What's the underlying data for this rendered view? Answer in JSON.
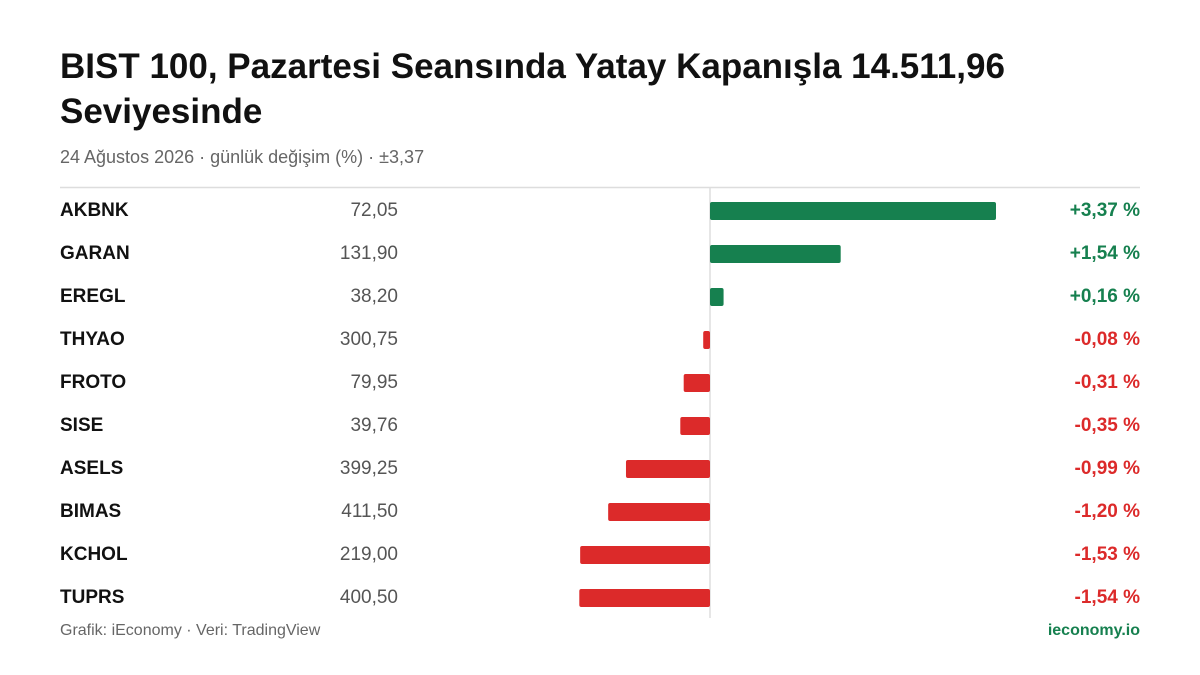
{
  "chart_data": {
    "type": "bar",
    "title": "BIST 100, Pazartesi Seansında Yatay Kapanışla 14.511,96 Seviyesinde",
    "subtitle": "24 Ağustos 2026 · günlük değişim (%) · ±3,37",
    "categories": [
      "AKBNK",
      "GARAN",
      "EREGL",
      "THYAO",
      "FROTO",
      "SISE",
      "ASELS",
      "BIMAS",
      "KCHOL",
      "TUPRS"
    ],
    "prices": [
      "72,05",
      "131,90",
      "38,20",
      "300,75",
      "79,95",
      "39,76",
      "399,25",
      "411,50",
      "219,00",
      "400,50"
    ],
    "values": [
      3.37,
      1.54,
      0.16,
      -0.08,
      -0.31,
      -0.35,
      -0.99,
      -1.2,
      -1.53,
      -1.54
    ],
    "value_labels": [
      "+3,37 %",
      "+1,54 %",
      "+0,16 %",
      "-0,08 %",
      "-0,31 %",
      "-0,35 %",
      "-0,99 %",
      "-1,20 %",
      "-1,53 %",
      "-1,54 %"
    ],
    "colors": {
      "positive": "#16804f",
      "negative": "#dc2a2a"
    },
    "source": "Grafik: iEconomy · Veri: TradingView",
    "brand": "ieconomy.io"
  }
}
